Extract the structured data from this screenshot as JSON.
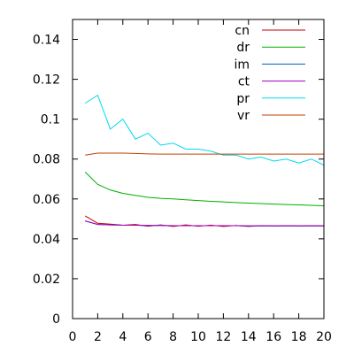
{
  "chart_data": {
    "type": "line",
    "title": "",
    "xlabel": "",
    "ylabel": "",
    "xlim": [
      0,
      20
    ],
    "ylim": [
      0,
      0.15
    ],
    "x_ticks": [
      0,
      2,
      4,
      6,
      8,
      10,
      12,
      14,
      16,
      18,
      20
    ],
    "x_tick_labels": [
      "0",
      "2",
      "4",
      "6",
      "8",
      "10",
      "12",
      "14",
      "16",
      "18",
      "20"
    ],
    "y_ticks": [
      0,
      0.02,
      0.04,
      0.06,
      0.08,
      0.1,
      0.12,
      0.14
    ],
    "y_tick_labels": [
      "0",
      "0.02",
      "0.04",
      "0.06",
      "0.08",
      "0.1",
      "0.12",
      "0.14"
    ],
    "grid": false,
    "legend_position": "top-right",
    "x": [
      1,
      2,
      3,
      4,
      5,
      6,
      7,
      8,
      9,
      10,
      11,
      12,
      13,
      14,
      15,
      16,
      17,
      18,
      19,
      20
    ],
    "series": [
      {
        "name": "cn",
        "color": "#c00000",
        "values": [
          0.0515,
          0.0478,
          0.0474,
          0.0468,
          0.0472,
          0.0463,
          0.047,
          0.0462,
          0.047,
          0.0463,
          0.0469,
          0.0462,
          0.0467,
          0.0462,
          0.0466,
          0.0465,
          0.0466,
          0.0465,
          0.0466,
          0.0465
        ]
      },
      {
        "name": "dr",
        "color": "#00b000",
        "values": [
          0.0735,
          0.0673,
          0.0645,
          0.0628,
          0.0618,
          0.0608,
          0.0603,
          0.06,
          0.0596,
          0.0592,
          0.0588,
          0.0585,
          0.0582,
          0.0579,
          0.0577,
          0.0574,
          0.0572,
          0.057,
          0.0568,
          0.0566
        ]
      },
      {
        "name": "im",
        "color": "#0060c0",
        "values": [
          0.049,
          0.0472,
          0.047,
          0.0468,
          0.0468,
          0.0467,
          0.0467,
          0.0466,
          0.0466,
          0.0466,
          0.0466,
          0.0466,
          0.0466,
          0.0465,
          0.0465,
          0.0465,
          0.0465,
          0.0465,
          0.0465,
          0.0465
        ]
      },
      {
        "name": "ct",
        "color": "#a000c0",
        "values": [
          0.049,
          0.0472,
          0.047,
          0.0468,
          0.0468,
          0.0467,
          0.0467,
          0.0466,
          0.0466,
          0.0466,
          0.0466,
          0.0466,
          0.0466,
          0.0465,
          0.0465,
          0.0465,
          0.0465,
          0.0465,
          0.0465,
          0.0465
        ]
      },
      {
        "name": "pr",
        "color": "#00d8f0",
        "values": [
          0.108,
          0.112,
          0.095,
          0.1,
          0.09,
          0.093,
          0.087,
          0.088,
          0.085,
          0.085,
          0.084,
          0.082,
          0.082,
          0.08,
          0.081,
          0.079,
          0.08,
          0.078,
          0.08,
          0.077
        ]
      },
      {
        "name": "vr",
        "color": "#c04000",
        "values": [
          0.082,
          0.083,
          0.083,
          0.083,
          0.0828,
          0.0826,
          0.0825,
          0.0825,
          0.0825,
          0.0825,
          0.0825,
          0.0825,
          0.0825,
          0.0825,
          0.0825,
          0.0825,
          0.0825,
          0.0825,
          0.0825,
          0.0825
        ]
      }
    ]
  }
}
